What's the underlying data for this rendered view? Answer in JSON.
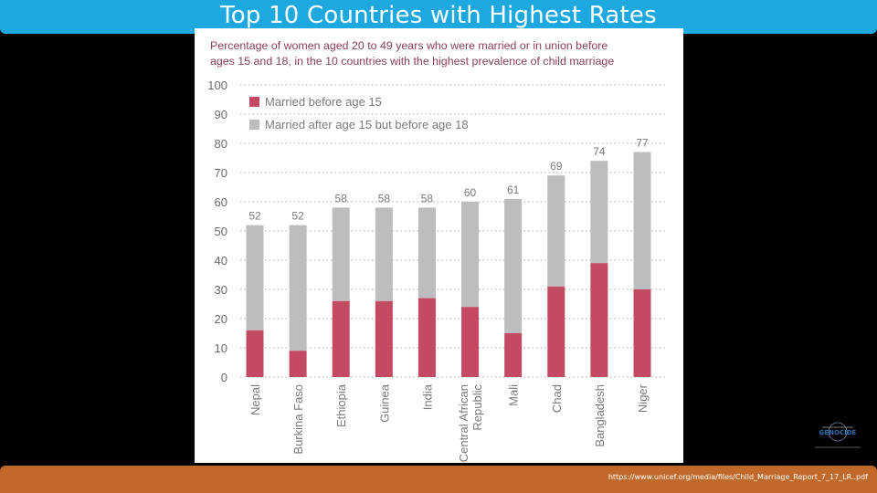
{
  "slide": {
    "title": "Top 10 Countries with Highest Rates",
    "source": "https://www.unicef.org/media/files/Child_Marriage_Report_7_17_LR..pdf",
    "logo_text": "GENOCIDE"
  },
  "colors": {
    "title_bar": "#1ea8e0",
    "footer_bar": "#c0692a",
    "married_before_15": "#c44a63",
    "married_after_15": "#bdbdc0",
    "chart_title_text": "#8a3f56"
  },
  "chart_data": {
    "type": "bar",
    "stacked": true,
    "title": "Percentage of women aged 20 to 49 years who were married or in union before ages 15 and 18, in the 10 countries with the highest prevalence of child marriage",
    "title_lines": [
      "Percentage of women aged 20 to 49 years who were married or in union before",
      "ages 15 and 18, in the 10 countries with the highest prevalence of child marriage"
    ],
    "categories": [
      "Nepal",
      "Burkina Faso",
      "Ethiopia",
      "Guinea",
      "India",
      "Central African Republic",
      "Mali",
      "Chad",
      "Bangladesh",
      "Niger"
    ],
    "category_lines": [
      [
        "Nepal"
      ],
      [
        "Burkina Faso"
      ],
      [
        "Ethiopia"
      ],
      [
        "Guinea"
      ],
      [
        "India"
      ],
      [
        "Central African",
        "Republic"
      ],
      [
        "Mali"
      ],
      [
        "Chad"
      ],
      [
        "Bangladesh"
      ],
      [
        "Niger"
      ]
    ],
    "series": [
      {
        "name": "Married before age 15",
        "values": [
          16,
          9,
          26,
          26,
          27,
          24,
          15,
          31,
          39,
          30
        ]
      },
      {
        "name": "Married after age 15 but before age 18",
        "values": [
          36,
          43,
          32,
          32,
          31,
          36,
          46,
          38,
          35,
          47
        ]
      }
    ],
    "totals": [
      52,
      52,
      58,
      58,
      58,
      60,
      61,
      69,
      74,
      77
    ],
    "ylim": [
      0,
      100
    ],
    "yticks": [
      0,
      10,
      20,
      30,
      40,
      50,
      60,
      70,
      80,
      90,
      100
    ],
    "grid": true,
    "legend_position": "top-left"
  }
}
